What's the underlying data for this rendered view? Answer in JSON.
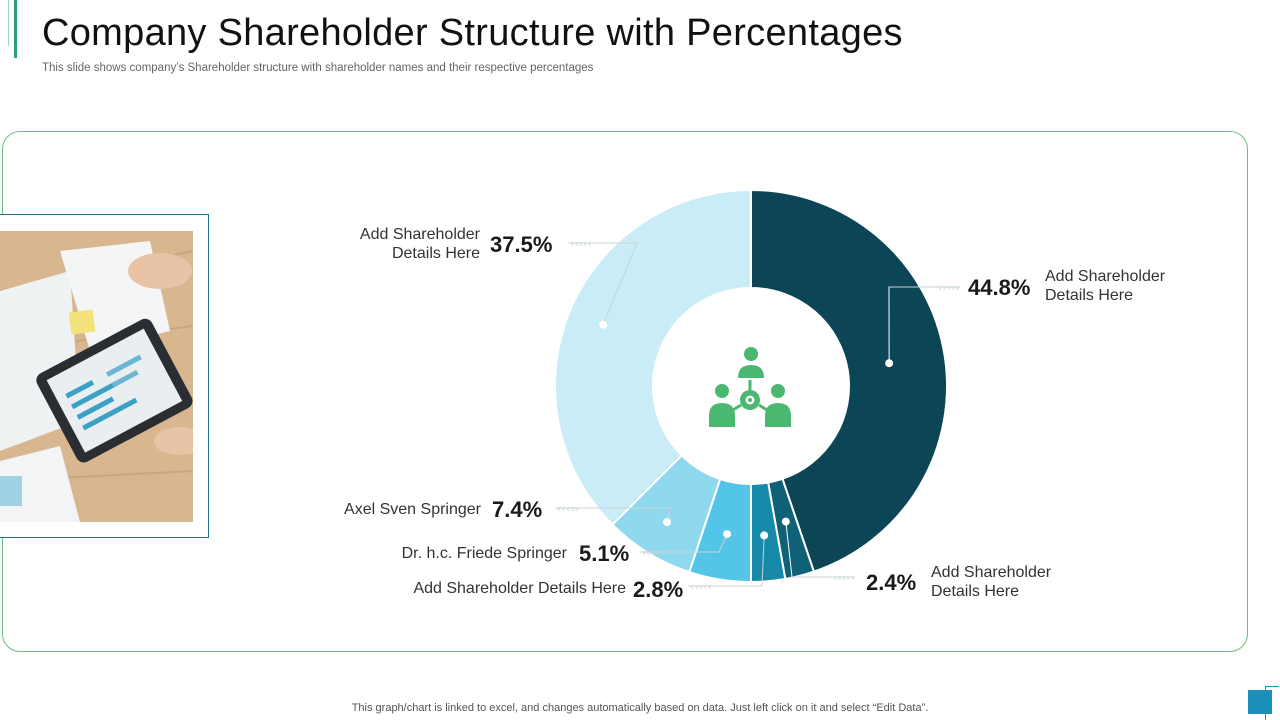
{
  "slide": {
    "title": "Company Shareholder Structure with Percentages",
    "subtitle": "This slide shows company’s Shareholder structure with shareholder names and their respective percentages",
    "footer": "This graph/chart is linked to excel,  and changes automatically based on data. Just left click on it and select “Edit Data”."
  },
  "center_icon": "group-network-icon",
  "colors": {
    "accent_green": "#2e9e6e",
    "icon_green": "#4bb872",
    "panel_border": "#6cbf80"
  },
  "chart_data": {
    "type": "pie",
    "variant": "donut",
    "unit": "%",
    "start": "12 o'clock, clockwise",
    "slices": [
      {
        "label_lines": [
          "Add Shareholder",
          "Details Here"
        ],
        "value": 44.8,
        "display": "44.8%",
        "color": "#0c4656"
      },
      {
        "label_lines": [
          "Add Shareholder",
          "Details Here"
        ],
        "value": 2.4,
        "display": "2.4%",
        "color": "#0e6177"
      },
      {
        "label_lines": [
          "Add Shareholder  Details Here"
        ],
        "value": 2.8,
        "display": "2.8%",
        "color": "#178aa9"
      },
      {
        "label_lines": [
          "Dr. h.c. Friede Springer"
        ],
        "value": 5.1,
        "display": "5.1%",
        "color": "#53c5e6"
      },
      {
        "label_lines": [
          "Axel Sven Springer"
        ],
        "value": 7.4,
        "display": "7.4%",
        "color": "#8fd9ef"
      },
      {
        "label_lines": [
          "Add Shareholder",
          "Details Here"
        ],
        "value": 37.5,
        "display": "37.5%",
        "color": "#c9ecf6"
      }
    ]
  }
}
